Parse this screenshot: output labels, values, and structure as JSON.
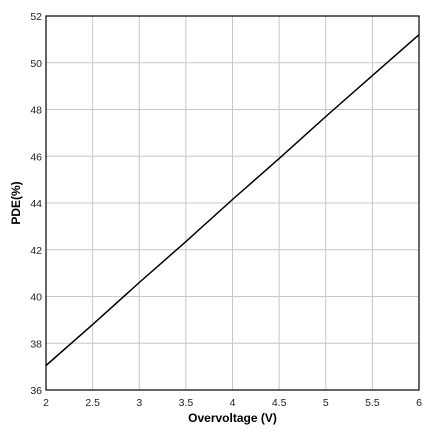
{
  "chart_data": {
    "type": "line",
    "xlabel": "Overvoltage (V)",
    "ylabel": "PDE(%)",
    "xlim": [
      2,
      6
    ],
    "ylim": [
      36,
      52
    ],
    "x_ticks": [
      "2",
      "2.5",
      "3",
      "3.5",
      "4",
      "4.5",
      "5",
      "5.5",
      "6"
    ],
    "y_ticks": [
      "36",
      "38",
      "40",
      "42",
      "44",
      "46",
      "48",
      "50",
      "52"
    ],
    "grid": true,
    "series": [
      {
        "x": [
          2,
          2.5,
          3,
          3.5,
          4,
          4.5,
          5,
          5.5,
          6
        ],
        "values": [
          37.05,
          38.8,
          40.6,
          42.35,
          44.15,
          45.9,
          47.7,
          49.45,
          51.2
        ],
        "color": "#000000"
      }
    ]
  }
}
